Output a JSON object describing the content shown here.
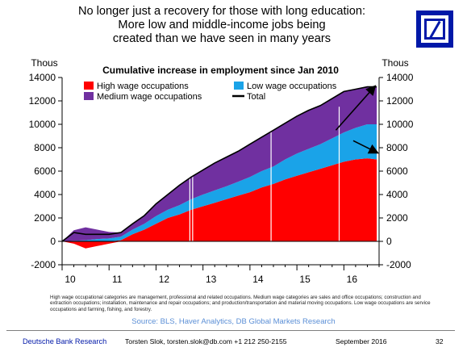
{
  "header": {
    "title_lines": [
      "No longer just a recovery for those with long education:",
      "More low and middle-income jobs being",
      "created than we have seen in many years"
    ]
  },
  "logo": {
    "name": "deutsche-bank-logo",
    "color": "#0018a8"
  },
  "chart_data": {
    "type": "area",
    "stacked": true,
    "title": "Cumulative increase in employment since Jan 2010",
    "ylabel_left": "Thous",
    "ylabel_right": "Thous",
    "ylim": [
      -2000,
      14000
    ],
    "yticks": [
      -2000,
      0,
      2000,
      4000,
      6000,
      8000,
      10000,
      12000,
      14000
    ],
    "ytick_labels": [
      "-2000",
      "0",
      "2000",
      "4000",
      "6000",
      "8000",
      "10000",
      "12000",
      "14000"
    ],
    "xlim": [
      2010.0,
      2016.75
    ],
    "xticks": [
      2010,
      2011,
      2012,
      2013,
      2014,
      2015,
      2016
    ],
    "xtick_labels": [
      "10",
      "11",
      "12",
      "13",
      "14",
      "15",
      "16"
    ],
    "legend": {
      "placement": "top-left",
      "entries": [
        {
          "label": "High wage occupations",
          "color": "#ff0000",
          "kind": "box"
        },
        {
          "label": "Low wage occupations",
          "color": "#1aa3e8",
          "kind": "box"
        },
        {
          "label": "Medium wage occupations",
          "color": "#7030a0",
          "kind": "box"
        },
        {
          "label": "Total",
          "color": "#000000",
          "kind": "line"
        }
      ]
    },
    "x": [
      2010.0,
      2010.25,
      2010.5,
      2010.75,
      2011.0,
      2011.25,
      2011.5,
      2011.75,
      2012.0,
      2012.25,
      2012.5,
      2012.75,
      2013.0,
      2013.25,
      2013.5,
      2013.75,
      2014.0,
      2014.25,
      2014.5,
      2014.75,
      2015.0,
      2015.25,
      2015.5,
      2015.75,
      2016.0,
      2016.25,
      2016.5,
      2016.7
    ],
    "series": [
      {
        "name": "High wage occupations",
        "color": "#ff0000",
        "values": [
          0,
          -200,
          -600,
          -400,
          -200,
          100,
          600,
          1000,
          1500,
          2000,
          2300,
          2700,
          3000,
          3300,
          3600,
          3900,
          4200,
          4600,
          4900,
          5300,
          5600,
          5900,
          6200,
          6500,
          6800,
          7000,
          7100,
          7000
        ]
      },
      {
        "name": "Low wage occupations",
        "color": "#1aa3e8",
        "values": [
          0,
          50,
          100,
          200,
          250,
          300,
          400,
          500,
          650,
          700,
          800,
          900,
          1000,
          1050,
          1100,
          1200,
          1300,
          1400,
          1500,
          1700,
          1900,
          2000,
          2100,
          2300,
          2500,
          2700,
          2900,
          3000
        ]
      },
      {
        "name": "Medium wage occupations",
        "color": "#7030a0",
        "values": [
          0,
          900,
          1100,
          800,
          550,
          350,
          500,
          700,
          1050,
          1300,
          1700,
          1900,
          2100,
          2350,
          2500,
          2600,
          2800,
          2900,
          3100,
          3100,
          3200,
          3300,
          3300,
          3400,
          3500,
          3300,
          3200,
          3200
        ]
      }
    ],
    "total": {
      "name": "Total",
      "color": "#000000",
      "values": [
        0,
        750,
        600,
        600,
        600,
        750,
        1500,
        2200,
        3200,
        4000,
        4800,
        5500,
        6100,
        6700,
        7200,
        7700,
        8300,
        8900,
        9500,
        10100,
        10700,
        11200,
        11600,
        12200,
        12800,
        13000,
        13200,
        13200
      ]
    },
    "annotations": [
      {
        "type": "arrow",
        "color": "#000000",
        "from": [
          2015.83,
          9500
        ],
        "to": [
          2016.65,
          13200
        ]
      },
      {
        "type": "arrow",
        "color": "#000000",
        "from": [
          2016.2,
          8600
        ],
        "to": [
          2016.7,
          7600
        ]
      }
    ]
  },
  "footnote": "High wage occupational categories are management, professional and related occupations. Medium wage categories are sales and office occupations; construction and extraction occupations; installation, maintenance and repair occupations; and production/transportation and material moving occupations. Low wage occupations are service occupations and farming, fishing, and forestry.",
  "source": "Source: BLS, Haver Analytics, DB Global Markets Research",
  "footer": {
    "brand": "Deutsche Bank Research",
    "author": "Torsten Slok, torsten.slok@db.com +1 212 250-2155",
    "date": "September 2016",
    "page": "32"
  }
}
